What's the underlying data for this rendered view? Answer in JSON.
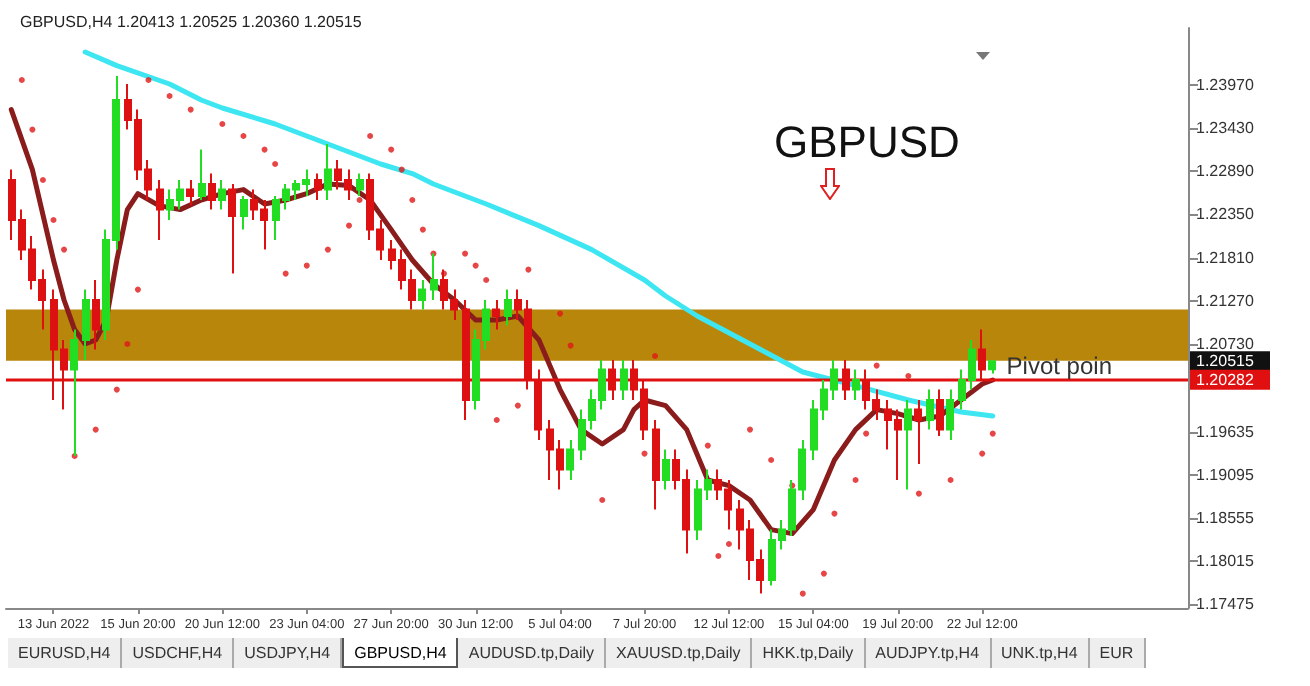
{
  "chart_data": {
    "type": "candlestick",
    "title": "GBPUSD",
    "subtitle": "GBPUSD,H4 1.20413 1.20525 1.20360 1.20515",
    "categories": [
      null,
      null,
      null,
      null,
      "13 Jun 2022",
      null,
      null,
      null,
      null,
      null,
      null,
      null,
      "15 Jun 20:00",
      null,
      null,
      null,
      null,
      null,
      null,
      null,
      "20 Jun 12:00",
      null,
      null,
      null,
      null,
      null,
      null,
      null,
      "23 Jun 04:00",
      null,
      null,
      null,
      null,
      null,
      null,
      null,
      "27 Jun 20:00",
      null,
      null,
      null,
      null,
      null,
      null,
      null,
      "30 Jun 12:00",
      null,
      null,
      null,
      null,
      null,
      null,
      null,
      "5 Jul 04:00",
      null,
      null,
      null,
      null,
      null,
      null,
      null,
      "7 Jul 20:00",
      null,
      null,
      null,
      null,
      null,
      null,
      null,
      "12 Jul 12:00",
      null,
      null,
      null,
      null,
      null,
      null,
      null,
      "15 Jul 04:00",
      null,
      null,
      null,
      null,
      null,
      null,
      null,
      "19 Jul 20:00",
      null,
      null,
      null,
      null,
      null,
      null,
      null,
      "22 Jul 12:00",
      null,
      null,
      null,
      null,
      null,
      null,
      null,
      null,
      null,
      null,
      null,
      null,
      null,
      null,
      null,
      null,
      null,
      null,
      null
    ],
    "ohlc": [
      [
        1.2278,
        1.2291,
        1.2203,
        1.2228
      ],
      [
        1.2228,
        1.2241,
        1.2178,
        1.2191
      ],
      [
        1.2191,
        1.2208,
        1.2141,
        1.2153
      ],
      [
        1.2153,
        1.2166,
        1.2091,
        1.2128
      ],
      [
        1.2128,
        1.2141,
        1.2003,
        1.2066
      ],
      [
        1.2066,
        1.2078,
        1.1991,
        1.2041
      ],
      [
        1.2041,
        1.2091,
        1.1933,
        1.2078
      ],
      [
        1.2078,
        1.2141,
        1.2053,
        1.2128
      ],
      [
        1.2128,
        1.2153,
        1.2066,
        1.2091
      ],
      [
        1.2091,
        1.2216,
        1.2078,
        1.2203
      ],
      [
        1.2203,
        1.2408,
        1.2191,
        1.2378
      ],
      [
        1.2378,
        1.2398,
        1.2341,
        1.2353
      ],
      [
        1.2353,
        1.2366,
        1.2278,
        1.2291
      ],
      [
        1.2291,
        1.2303,
        1.2253,
        1.2266
      ],
      [
        1.2266,
        1.2278,
        1.2203,
        1.2241
      ],
      [
        1.2241,
        1.2266,
        1.2228,
        1.2253
      ],
      [
        1.2253,
        1.2278,
        1.2241,
        1.2266
      ],
      [
        1.2266,
        1.2278,
        1.2246,
        1.2258
      ],
      [
        1.2258,
        1.2316,
        1.2253,
        1.2273
      ],
      [
        1.2273,
        1.2286,
        1.2241,
        1.2253
      ],
      [
        1.2253,
        1.2278,
        1.2241,
        1.2266
      ],
      [
        1.2266,
        1.2273,
        1.2161,
        1.2233
      ],
      [
        1.2233,
        1.2258,
        1.2216,
        1.2253
      ],
      [
        1.2253,
        1.2266,
        1.2228,
        1.2241
      ],
      [
        1.2241,
        1.2253,
        1.2191,
        1.2228
      ],
      [
        1.2228,
        1.2258,
        1.2203,
        1.2253
      ],
      [
        1.2253,
        1.2273,
        1.2241,
        1.2266
      ],
      [
        1.2266,
        1.2278,
        1.2253,
        1.2273
      ],
      [
        1.2273,
        1.2291,
        1.2258,
        1.2278
      ],
      [
        1.2278,
        1.2286,
        1.2253,
        1.2266
      ],
      [
        1.2266,
        1.2323,
        1.2253,
        1.2291
      ],
      [
        1.2291,
        1.2303,
        1.2266,
        1.2278
      ],
      [
        1.2278,
        1.2291,
        1.2253,
        1.2266
      ],
      [
        1.2266,
        1.2286,
        1.2258,
        1.2278
      ],
      [
        1.2278,
        1.2286,
        1.2203,
        1.2216
      ],
      [
        1.2216,
        1.2228,
        1.2178,
        1.2191
      ],
      [
        1.2191,
        1.2203,
        1.2166,
        1.2178
      ],
      [
        1.2178,
        1.2191,
        1.2141,
        1.2153
      ],
      [
        1.2153,
        1.2166,
        1.2116,
        1.2128
      ],
      [
        1.2128,
        1.2153,
        1.2116,
        1.2141
      ],
      [
        1.2141,
        1.2186,
        1.2128,
        1.2153
      ],
      [
        1.2153,
        1.2166,
        1.2116,
        1.2128
      ],
      [
        1.2128,
        1.2141,
        1.2103,
        1.2116
      ],
      [
        1.2116,
        1.2128,
        1.1978,
        1.2003
      ],
      [
        1.2003,
        1.2091,
        1.1991,
        1.2078
      ],
      [
        1.2078,
        1.2128,
        1.2066,
        1.2116
      ],
      [
        1.2116,
        1.2128,
        1.2091,
        1.2108
      ],
      [
        1.2108,
        1.2141,
        1.2096,
        1.2128
      ],
      [
        1.2128,
        1.2141,
        1.2103,
        1.2116
      ],
      [
        1.2116,
        1.2128,
        1.2016,
        1.2028
      ],
      [
        1.2028,
        1.2041,
        1.1953,
        1.1966
      ],
      [
        1.1966,
        1.1978,
        1.1903,
        1.1941
      ],
      [
        1.1941,
        1.1953,
        1.1891,
        1.1916
      ],
      [
        1.1916,
        1.1953,
        1.1903,
        1.1941
      ],
      [
        1.1941,
        1.1991,
        1.1928,
        1.1978
      ],
      [
        1.1978,
        1.2016,
        1.1966,
        1.2003
      ],
      [
        1.2003,
        1.2053,
        1.1991,
        1.2041
      ],
      [
        1.2041,
        1.2053,
        1.2003,
        1.2016
      ],
      [
        1.2016,
        1.2053,
        1.2003,
        1.2041
      ],
      [
        1.2041,
        1.2053,
        1.2003,
        1.2016
      ],
      [
        1.2016,
        1.2028,
        1.1953,
        1.1966
      ],
      [
        1.1966,
        1.1978,
        1.1866,
        1.1903
      ],
      [
        1.1903,
        1.1941,
        1.1891,
        1.1928
      ],
      [
        1.1928,
        1.1941,
        1.1891,
        1.1903
      ],
      [
        1.1903,
        1.1916,
        1.1811,
        1.1841
      ],
      [
        1.1841,
        1.1903,
        1.1828,
        1.1891
      ],
      [
        1.1891,
        1.1916,
        1.1878,
        1.1903
      ],
      [
        1.1903,
        1.1916,
        1.1878,
        1.1891
      ],
      [
        1.1891,
        1.1903,
        1.1841,
        1.1866
      ],
      [
        1.1866,
        1.1878,
        1.1816,
        1.1841
      ],
      [
        1.1841,
        1.1853,
        1.1778,
        1.1803
      ],
      [
        1.1803,
        1.1816,
        1.1761,
        1.1778
      ],
      [
        1.1778,
        1.1841,
        1.1771,
        1.1828
      ],
      [
        1.1828,
        1.1853,
        1.1816,
        1.1841
      ],
      [
        1.1841,
        1.1903,
        1.1833,
        1.1891
      ],
      [
        1.1891,
        1.1953,
        1.1878,
        1.1941
      ],
      [
        1.1941,
        1.2003,
        1.1928,
        1.1991
      ],
      [
        1.1991,
        1.2028,
        1.1978,
        1.2016
      ],
      [
        1.2016,
        1.2053,
        1.2003,
        1.2041
      ],
      [
        1.2041,
        1.2053,
        1.2003,
        1.2016
      ],
      [
        1.2016,
        1.2041,
        1.2003,
        1.2028
      ],
      [
        1.2028,
        1.2041,
        1.1991,
        1.2003
      ],
      [
        1.2003,
        1.2016,
        1.1978,
        1.1991
      ],
      [
        1.1991,
        1.2003,
        1.1941,
        1.1978
      ],
      [
        1.1978,
        1.1991,
        1.1903,
        1.1966
      ],
      [
        1.1966,
        1.2003,
        1.1891,
        1.1991
      ],
      [
        1.1991,
        1.2003,
        1.1923,
        1.1978
      ],
      [
        1.1978,
        1.2016,
        1.1966,
        1.2003
      ],
      [
        1.2003,
        1.2016,
        1.1958,
        1.1966
      ],
      [
        1.1966,
        1.2016,
        1.1953,
        1.2003
      ],
      [
        1.2003,
        1.2041,
        1.1991,
        1.2028
      ],
      [
        1.2028,
        1.2078,
        1.2016,
        1.2066
      ],
      [
        1.2066,
        1.2091,
        1.2028,
        1.2041
      ],
      [
        1.20413,
        1.20525,
        1.2036,
        1.20515
      ],
      null,
      null,
      null,
      null,
      null,
      null,
      null,
      null,
      null,
      null,
      null,
      null,
      null,
      null,
      null,
      null,
      null,
      null
    ],
    "colors": [
      "#dd1111",
      "#dd1111",
      "#dd1111",
      "#dd1111",
      "#dd1111",
      "#dd1111",
      "#22dd22",
      "#22dd22",
      "#dd1111",
      "#22dd22",
      "#22dd22",
      "#dd1111",
      "#dd1111",
      "#dd1111",
      "#dd1111",
      "#22dd22",
      "#22dd22",
      "#dd1111",
      "#22dd22",
      "#dd1111",
      "#22dd22",
      "#dd1111",
      "#22dd22",
      "#dd1111",
      "#dd1111",
      "#22dd22",
      "#22dd22",
      "#22dd22",
      "#22dd22",
      "#dd1111",
      "#22dd22",
      "#dd1111",
      "#dd1111",
      "#22dd22",
      "#dd1111",
      "#dd1111",
      "#dd1111",
      "#dd1111",
      "#dd1111",
      "#22dd22",
      "#22dd22",
      "#dd1111",
      "#dd1111",
      "#dd1111",
      "#22dd22",
      "#22dd22",
      "#dd1111",
      "#22dd22",
      "#dd1111",
      "#dd1111",
      "#dd1111",
      "#dd1111",
      "#dd1111",
      "#22dd22",
      "#22dd22",
      "#22dd22",
      "#22dd22",
      "#dd1111",
      "#22dd22",
      "#dd1111",
      "#dd1111",
      "#dd1111",
      "#22dd22",
      "#dd1111",
      "#dd1111",
      "#22dd22",
      "#22dd22",
      "#dd1111",
      "#dd1111",
      "#dd1111",
      "#dd1111",
      "#dd1111",
      "#22dd22",
      "#22dd22",
      "#22dd22",
      "#22dd22",
      "#22dd22",
      "#22dd22",
      "#22dd22",
      "#dd1111",
      "#22dd22",
      "#dd1111",
      "#dd1111",
      "#dd1111",
      "#dd1111",
      "#22dd22",
      "#dd1111",
      "#22dd22",
      "#dd1111",
      "#22dd22",
      "#22dd22",
      "#22dd22",
      "#dd1111",
      "#22dd22",
      null,
      null,
      null,
      null,
      null,
      null,
      null,
      null,
      null,
      null,
      null,
      null,
      null,
      null,
      null,
      null,
      null,
      null
    ],
    "series": [
      {
        "type": "line",
        "color": "#3ee6f2",
        "values": [
          null,
          null,
          null,
          null,
          null,
          null,
          null,
          1.2438,
          null,
          null,
          1.2421,
          null,
          null,
          null,
          null,
          1.2398,
          null,
          null,
          1.2378,
          null,
          1.2368,
          null,
          null,
          null,
          null,
          1.2348,
          null,
          null,
          null,
          null,
          1.2323,
          null,
          null,
          null,
          null,
          1.2298,
          null,
          null,
          1.2286,
          null,
          1.2273,
          null,
          null,
          null,
          null,
          1.2248,
          null,
          null,
          null,
          null,
          1.2221,
          null,
          null,
          null,
          null,
          1.2191,
          null,
          null,
          null,
          null,
          1.2153,
          null,
          1.2133,
          null,
          null,
          1.2108,
          null,
          null,
          null,
          null,
          1.2073,
          null,
          null,
          null,
          null,
          1.2038,
          null,
          null,
          null,
          null,
          1.2021,
          null,
          null,
          null,
          null,
          1.2003,
          null,
          null,
          null,
          null,
          1.1988,
          null,
          null,
          1.1983,
          null,
          null,
          null,
          null,
          null,
          null,
          null,
          null,
          null,
          null,
          null,
          null,
          null,
          null,
          null,
          null,
          null,
          null
        ]
      },
      {
        "type": "line",
        "color": "#8b1c1c",
        "values": [
          1.2366,
          null,
          1.2291,
          null,
          1.2178,
          1.2128,
          1.2091,
          1.2073,
          1.2078,
          1.2103,
          1.2178,
          1.2241,
          1.2261,
          null,
          1.2246,
          null,
          1.2241,
          null,
          1.2253,
          null,
          1.2261,
          null,
          1.2266,
          null,
          1.2248,
          null,
          1.2253,
          null,
          1.2261,
          null,
          1.2273,
          null,
          1.2271,
          null,
          1.2253,
          null,
          1.2216,
          null,
          1.2178,
          null,
          1.2148,
          null,
          1.2128,
          null,
          1.2103,
          null,
          1.2103,
          null,
          1.2108,
          null,
          1.2078,
          null,
          1.2016,
          null,
          1.1966,
          null,
          1.1948,
          null,
          1.1966,
          1.1991,
          1.2003,
          null,
          1.1996,
          null,
          1.1966,
          null,
          1.1903,
          null,
          1.1896,
          null,
          1.1878,
          null,
          1.1841,
          null,
          1.1836,
          null,
          1.1866,
          null,
          1.1928,
          null,
          1.1966,
          null,
          1.1991,
          null,
          1.1986,
          null,
          1.1978,
          null,
          1.1983,
          null,
          1.2003,
          null,
          1.2023,
          1.2028,
          null,
          null,
          null,
          null,
          null,
          null,
          null,
          null,
          null,
          null,
          null,
          null,
          null,
          null,
          null,
          null,
          null,
          null
        ]
      },
      {
        "type": "scatter",
        "color": "#e01818",
        "marker": "circle",
        "values": [
          null,
          1.2403,
          1.2341,
          1.2278,
          1.2228,
          1.2191,
          1.1933,
          null,
          1.1966,
          null,
          1.2016,
          1.2073,
          1.2141,
          1.2403,
          null,
          1.2383,
          null,
          1.2366,
          null,
          null,
          1.2348,
          null,
          1.2333,
          null,
          1.2316,
          1.2298,
          1.2161,
          null,
          1.2171,
          null,
          1.2191,
          null,
          1.2221,
          1.2253,
          1.2333,
          null,
          1.2316,
          1.2291,
          1.2253,
          1.2216,
          1.2186,
          1.2161,
          null,
          1.2186,
          1.2171,
          1.2153,
          1.1978,
          null,
          1.1996,
          1.2166,
          null,
          null,
          1.2111,
          1.2071,
          null,
          null,
          1.1878,
          null,
          null,
          null,
          1.1936,
          1.2058,
          null,
          null,
          null,
          null,
          1.1946,
          1.1808,
          1.1823,
          null,
          1.1966,
          null,
          1.1928,
          null,
          1.1896,
          1.1761,
          null,
          1.1786,
          1.1861,
          null,
          1.1903,
          1.1961,
          1.2046,
          null,
          null,
          1.2033,
          1.1886,
          null,
          null,
          1.1903,
          null,
          null,
          1.1936,
          1.1961,
          null,
          null,
          null,
          null,
          null,
          null,
          null,
          null,
          null,
          null,
          null,
          null,
          null,
          null,
          null,
          null,
          null,
          null
        ]
      }
    ],
    "ylim": [
      1.1743,
      1.2468
    ],
    "yticks": [
      {
        "value": 1.2397,
        "label": "1.23970"
      },
      {
        "value": 1.2343,
        "label": "1.23430"
      },
      {
        "value": 1.2289,
        "label": "1.22890"
      },
      {
        "value": 1.2235,
        "label": "1.22350"
      },
      {
        "value": 1.2181,
        "label": "1.21810"
      },
      {
        "value": 1.2127,
        "label": "1.21270"
      },
      {
        "value": 1.2073,
        "label": "1.20730"
      },
      {
        "value": 1.19635,
        "label": "1.19635"
      },
      {
        "value": 1.19095,
        "label": "1.19095"
      },
      {
        "value": 1.18555,
        "label": "1.18555"
      },
      {
        "value": 1.18015,
        "label": "1.18015"
      },
      {
        "value": 1.17475,
        "label": "1.17475"
      }
    ],
    "ref_lines": [
      {
        "axis": "y",
        "value": 1.20282,
        "label": "Pivot poin",
        "color": "#e01010",
        "line_style": "solid"
      }
    ],
    "bands": [
      {
        "axis": "y",
        "from": 1.2052,
        "to": 1.2116,
        "color": "#b8860b"
      }
    ],
    "annotations": [
      "1.20515",
      "1.20282",
      "EURUSD,H4",
      "USDCHF,H4",
      "USDJPY,H4",
      "GBPUSD,H4",
      "AUDUSD.tp,Daily",
      "XAUUSD.tp,Daily",
      "HKK.tp,Daily",
      "AUDJPY.tp,H4",
      "UNK.tp,H4",
      "EUR"
    ]
  }
}
